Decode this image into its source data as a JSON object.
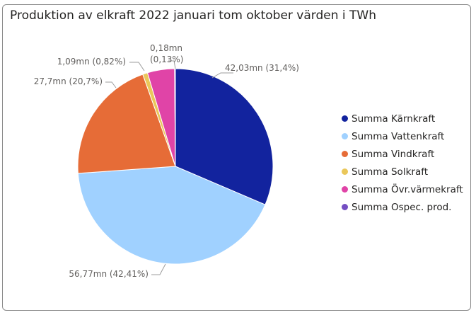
{
  "chart_data": {
    "type": "pie",
    "title": "Produktion av elkraft 2022 januari tom oktober värden i TWh",
    "slices": [
      {
        "name": "Summa Kärnkraft",
        "value": 42.03,
        "percent": 31.4,
        "label": "42,03mn (31,4%)",
        "color": "#12239e"
      },
      {
        "name": "Summa Vattenkraft",
        "value": 56.77,
        "percent": 42.41,
        "label": "56,77mn (42,41%)",
        "color": "#a0d1ff"
      },
      {
        "name": "Summa Vindkraft",
        "value": 27.7,
        "percent": 20.7,
        "label": "27,7mn (20,7%)",
        "color": "#e66c37"
      },
      {
        "name": "Summa Solkraft",
        "value": 1.09,
        "percent": 0.82,
        "label": "1,09mn (0,82%)",
        "color": "#eac75a"
      },
      {
        "name": "Summa Övr.värmekraft",
        "value": 6.0,
        "percent": 4.5,
        "label": "",
        "color": "#e044a7"
      },
      {
        "name": "Summa Ospec. prod.",
        "value": 0.18,
        "percent": 0.13,
        "label": "0,18mn (0,13%)",
        "color": "#744ec2"
      }
    ],
    "legend_position": "right"
  }
}
